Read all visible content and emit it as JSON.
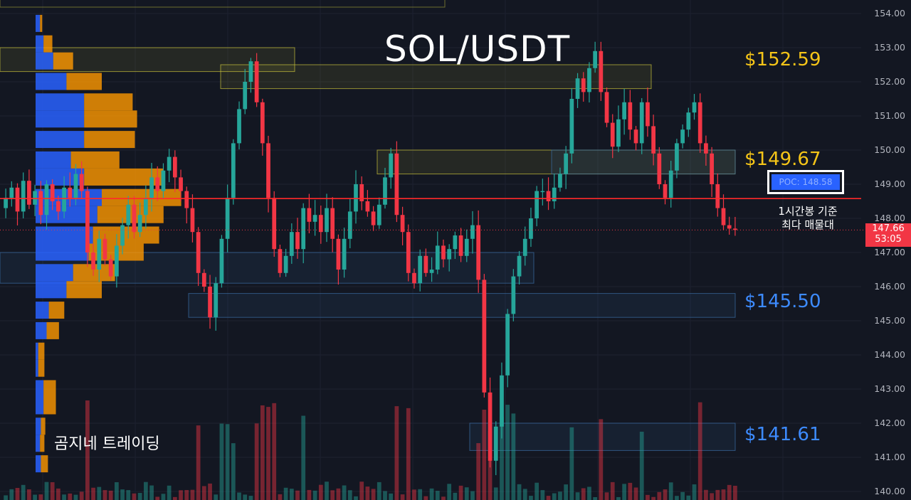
{
  "title": "SOL/USDT",
  "watermark": "곰지네 트레이딩",
  "levels": [
    {
      "label": "$152.59",
      "price": 152.59,
      "color": "#f5c518"
    },
    {
      "label": "$149.67",
      "price": 149.67,
      "color": "#f5c518"
    },
    {
      "label": "$145.50",
      "price": 145.5,
      "color": "#3d8bff"
    },
    {
      "label": "$141.61",
      "price": 141.61,
      "color": "#3d8bff"
    }
  ],
  "poc": {
    "label": "POC: 148.58",
    "price": 148.58,
    "note_line1": "1시간봉 기준",
    "note_line2": "최다 매물대"
  },
  "current_price": {
    "value": "147.66",
    "countdown": "53:05"
  },
  "colors": {
    "bull": "#26a69a",
    "bear": "#f23645",
    "poc_line": "#ff2a2a",
    "buy_volume": "#2962ff",
    "sell_volume": "#ff9800",
    "zone_yellow": "#c8c23a",
    "zone_blue": "#3a6ea5"
  },
  "chart_data": {
    "type": "candlestick",
    "title": "SOL/USDT",
    "timeframe": "1h",
    "ylim": [
      140,
      154
    ],
    "y_ticks": [
      "154.00",
      "153.00",
      "152.00",
      "151.00",
      "150.00",
      "149.00",
      "148.00",
      "147.00",
      "146.00",
      "145.00",
      "144.00",
      "143.00",
      "142.00",
      "141.00",
      "140.00"
    ],
    "close_path": [
      148.6,
      148.9,
      148.2,
      149.1,
      148.4,
      148.8,
      148.1,
      149.0,
      148.5,
      148.2,
      148.9,
      148.6,
      149.3,
      148.8,
      147.0,
      146.5,
      147.4,
      146.8,
      146.3,
      147.2,
      147.8,
      148.4,
      147.6,
      148.1,
      148.6,
      149.2,
      148.8,
      149.4,
      149.8,
      149.2,
      148.8,
      148.3,
      147.6,
      146.4,
      146.0,
      145.1,
      146.1,
      147.4,
      148.6,
      150.2,
      151.2,
      152.0,
      152.6,
      151.4,
      150.2,
      148.6,
      147.1,
      146.4,
      146.9,
      147.6,
      147.1,
      148.3,
      147.9,
      148.1,
      147.6,
      148.3,
      147.4,
      146.5,
      147.4,
      148.2,
      149.0,
      148.5,
      148.2,
      147.8,
      148.4,
      149.2,
      149.9,
      148.1,
      147.6,
      146.4,
      146.1,
      146.9,
      146.4,
      146.5,
      147.2,
      146.8,
      147.1,
      147.5,
      146.9,
      147.4,
      147.8,
      146.2,
      142.9,
      140.9,
      141.9,
      143.4,
      145.2,
      146.3,
      146.9,
      147.4,
      148.0,
      148.8,
      148.8,
      148.5,
      148.9,
      149.3,
      149.9,
      151.5,
      152.1,
      151.7,
      152.4,
      152.9,
      151.7,
      150.8,
      150.1,
      150.9,
      151.4,
      150.6,
      150.2,
      151.4,
      150.7,
      149.9,
      149.0,
      148.6,
      149.4,
      150.2,
      150.6,
      151.1,
      151.4,
      150.2,
      149.9,
      149.0,
      148.3,
      147.8,
      147.7,
      147.66
    ],
    "poc": 148.58,
    "levels": [
      152.59,
      149.67,
      145.5,
      141.61
    ],
    "zones": [
      {
        "color": "yellow",
        "from": 152.3,
        "to": 153.0
      },
      {
        "color": "yellow",
        "from": 151.8,
        "to": 152.5
      },
      {
        "color": "yellow",
        "from": 149.3,
        "to": 150.0
      },
      {
        "color": "blue",
        "from": 149.3,
        "to": 150.0
      },
      {
        "color": "blue",
        "from": 146.1,
        "to": 147.0
      },
      {
        "color": "blue",
        "from": 145.1,
        "to": 145.8
      },
      {
        "color": "blue",
        "from": 141.2,
        "to": 142.0
      }
    ],
    "volume_profile": [
      {
        "price": 153.7,
        "buy": 10,
        "sell": 5
      },
      {
        "price": 153.1,
        "buy": 18,
        "sell": 20
      },
      {
        "price": 152.6,
        "buy": 40,
        "sell": 45
      },
      {
        "price": 152.0,
        "buy": 70,
        "sell": 80
      },
      {
        "price": 151.4,
        "buy": 110,
        "sell": 110
      },
      {
        "price": 150.9,
        "buy": 110,
        "sell": 120
      },
      {
        "price": 150.3,
        "buy": 110,
        "sell": 115
      },
      {
        "price": 149.7,
        "buy": 80,
        "sell": 110
      },
      {
        "price": 149.2,
        "buy": 110,
        "sell": 180
      },
      {
        "price": 148.6,
        "buy": 150,
        "sell": 180
      },
      {
        "price": 148.1,
        "buy": 140,
        "sell": 150
      },
      {
        "price": 147.5,
        "buy": 130,
        "sell": 150
      },
      {
        "price": 147.0,
        "buy": 120,
        "sell": 125
      },
      {
        "price": 146.4,
        "buy": 85,
        "sell": 95
      },
      {
        "price": 145.9,
        "buy": 70,
        "sell": 80
      },
      {
        "price": 145.3,
        "buy": 30,
        "sell": 35
      },
      {
        "price": 144.7,
        "buy": 25,
        "sell": 28
      },
      {
        "price": 144.1,
        "buy": 6,
        "sell": 14
      },
      {
        "price": 143.6,
        "buy": 6,
        "sell": 14
      },
      {
        "price": 143.0,
        "buy": 18,
        "sell": 28
      },
      {
        "price": 142.5,
        "buy": 18,
        "sell": 28
      },
      {
        "price": 141.9,
        "buy": 12,
        "sell": 10
      },
      {
        "price": 141.4,
        "buy": 10,
        "sell": 10
      },
      {
        "price": 140.8,
        "buy": 12,
        "sell": 16
      }
    ]
  }
}
